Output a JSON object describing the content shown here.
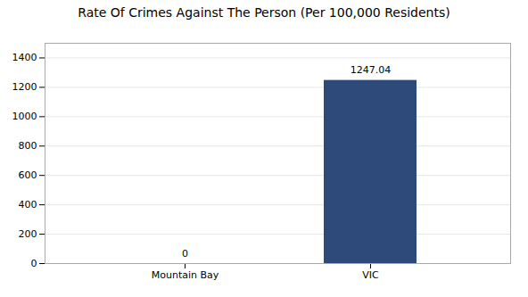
{
  "chart_data": {
    "type": "bar",
    "title": "Rate Of Crimes Against The Person (Per 100,000 Residents)",
    "categories": [
      "Mountain Bay",
      "VIC"
    ],
    "values": [
      0,
      1247.04
    ],
    "color": "#2e4a7a",
    "ylim": [
      0,
      1500
    ],
    "yticks": [
      0,
      200,
      400,
      600,
      800,
      1000,
      1200,
      1400
    ],
    "grid": true,
    "data_labels": true
  }
}
